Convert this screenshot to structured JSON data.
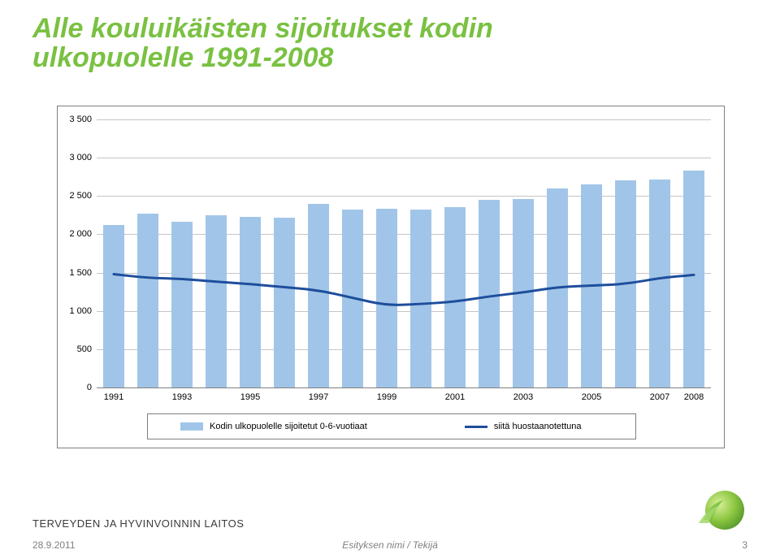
{
  "title_line1": "Alle kouluikäisten sijoitukset kodin",
  "title_line2": "ulkopuolelle 1991-2008",
  "org_label": "TERVEYDEN JA HYVINVOINNIN LAITOS",
  "footer": {
    "date": "28.9.2011",
    "center": "Esityksen nimi / Tekijä",
    "page": "3"
  },
  "chart": {
    "type": "bar+line",
    "background_color": "#ffffff",
    "grid_color": "#9e9e9e",
    "axis_color": "#808080",
    "ylim": [
      0,
      3500
    ],
    "ytick_step": 500,
    "yticks": [
      {
        "v": 0,
        "label": "0"
      },
      {
        "v": 500,
        "label": "500"
      },
      {
        "v": 1000,
        "label": "1 000"
      },
      {
        "v": 1500,
        "label": "1 500"
      },
      {
        "v": 2000,
        "label": "2 000"
      },
      {
        "v": 2500,
        "label": "2 500"
      },
      {
        "v": 3000,
        "label": "3 000"
      },
      {
        "v": 3500,
        "label": "3 500"
      }
    ],
    "xtick_years": [
      1991,
      1993,
      1995,
      1997,
      1999,
      2001,
      2003,
      2005,
      2007,
      2008
    ],
    "years": [
      1991,
      1992,
      1993,
      1994,
      1995,
      1996,
      1997,
      1998,
      1999,
      2000,
      2001,
      2002,
      2003,
      2004,
      2005,
      2006,
      2007,
      2008
    ],
    "bar_values": [
      2120,
      2270,
      2160,
      2250,
      2230,
      2220,
      2400,
      2320,
      2330,
      2320,
      2350,
      2450,
      2460,
      2600,
      2650,
      2700,
      2720,
      2830
    ],
    "line_values": [
      1480,
      1430,
      1420,
      1380,
      1350,
      1310,
      1270,
      1170,
      1070,
      1090,
      1120,
      1190,
      1240,
      1310,
      1330,
      1350,
      1430,
      1470
    ],
    "bar_color": "#a1c5e8",
    "bar_width_ratio": 0.62,
    "line_color": "#1e4e9c",
    "line_width": 3,
    "label_fontsize": 11,
    "legend": {
      "items": [
        {
          "type": "bar",
          "label": "Kodin ulkopuolelle sijoitetut 0-6-vuotiaat",
          "color": "#a1c5e8"
        },
        {
          "type": "line",
          "label": "siitä huostaanotettuna",
          "color": "#1e4e9c"
        }
      ]
    }
  }
}
